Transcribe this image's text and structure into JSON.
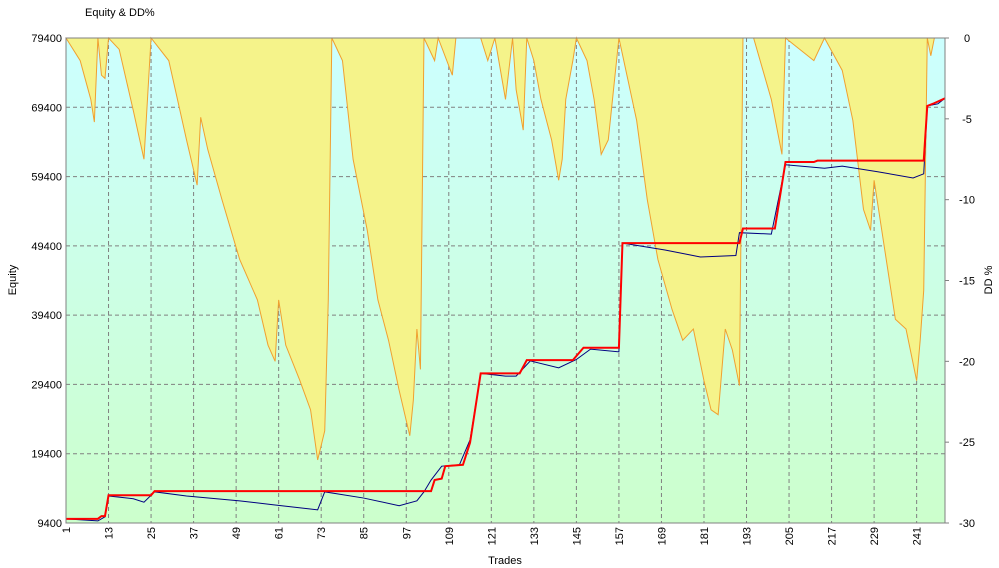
{
  "chart_data": {
    "type": "line",
    "title": "Equity & DD%",
    "x_label": "Trades",
    "y_label": "Equity",
    "y2_label": "DD %",
    "xlim": [
      1,
      249
    ],
    "xticks": [
      1,
      13,
      25,
      37,
      49,
      61,
      73,
      85,
      97,
      109,
      121,
      133,
      145,
      157,
      169,
      181,
      193,
      205,
      217,
      229,
      241
    ],
    "ylim": [
      9400,
      79400
    ],
    "yticks": [
      9400,
      19400,
      29400,
      39400,
      49400,
      59400,
      69400,
      79400
    ],
    "y2lim": [
      -30,
      0
    ],
    "y2ticks": [
      0,
      -5,
      -10,
      -15,
      -20,
      -25,
      -30
    ],
    "grid": true,
    "series": [
      {
        "type": "area",
        "axis": "y2",
        "color": "#f5f38a",
        "edge_color": "#f0a030",
        "x": [
          1,
          5,
          8,
          9,
          10,
          11,
          12,
          13,
          16,
          20,
          23,
          25,
          30,
          35,
          38,
          39,
          41,
          45,
          50,
          55,
          58,
          60,
          61,
          63,
          67,
          70,
          72,
          74,
          75,
          76,
          79,
          82,
          86,
          89,
          92,
          95,
          98,
          99,
          100,
          101,
          102,
          105,
          106,
          110,
          111,
          118,
          120,
          122,
          125,
          127,
          128,
          130,
          131,
          133,
          135,
          138,
          140,
          141,
          142,
          144,
          145,
          148,
          150,
          152,
          154,
          157,
          162,
          165,
          168,
          172,
          175,
          178,
          181,
          183,
          185,
          187,
          189,
          191,
          192,
          195,
          200,
          203,
          204,
          212,
          215,
          220,
          223,
          226,
          228,
          229,
          232,
          235,
          238,
          241,
          242,
          243,
          244,
          245,
          246,
          249
        ],
        "values": [
          0,
          -1.4,
          -3.8,
          -5.2,
          0,
          -2.3,
          -2.5,
          0,
          -0.7,
          -4.5,
          -7.5,
          0,
          -1.4,
          -6.3,
          -9.1,
          -4.9,
          -6.9,
          -10,
          -13.7,
          -16.2,
          -19,
          -20,
          -16.2,
          -19,
          -21.2,
          -23,
          -26.1,
          -24.3,
          -16.2,
          0,
          -1.4,
          -7.5,
          -11.9,
          -16.2,
          -18.7,
          -21.8,
          -24.6,
          -22.4,
          -18,
          -20.5,
          0,
          -1.4,
          0,
          -2.3,
          0,
          0,
          -1.4,
          0,
          -3.8,
          0,
          -3.2,
          -5.7,
          0,
          -1.4,
          -3.8,
          -6.3,
          -8.8,
          -7.5,
          -3.8,
          -1.4,
          0,
          -1.4,
          -3.8,
          -7.2,
          -6.3,
          0,
          -5.1,
          -10,
          -13.7,
          -16.8,
          -18.7,
          -18,
          -21.2,
          -23,
          -23.3,
          -18,
          -19.3,
          -21.5,
          0,
          0,
          -3.8,
          -7.2,
          0,
          -1.4,
          0,
          -2,
          -5.1,
          -10.6,
          -11.9,
          -8.8,
          -13.1,
          -17.4,
          -18,
          -21.2,
          -18.7,
          -15.6,
          0,
          -1.1,
          0,
          0
        ]
      },
      {
        "type": "line",
        "color": "#000080",
        "x": [
          1,
          10,
          12,
          13,
          20,
          23,
          26,
          35,
          50,
          60,
          72,
          74,
          85,
          95,
          100,
          102,
          104,
          107,
          112,
          115,
          118,
          125,
          128,
          132,
          140,
          145,
          149,
          157,
          158,
          170,
          180,
          190,
          191,
          200,
          204,
          215,
          220,
          230,
          240,
          243,
          244,
          247,
          249
        ],
        "values": [
          10000,
          9700,
          10300,
          13300,
          12900,
          12400,
          13900,
          13300,
          12600,
          12000,
          11300,
          13900,
          13000,
          11900,
          12600,
          13900,
          15600,
          17600,
          17800,
          21400,
          31000,
          30600,
          30600,
          32800,
          31800,
          33000,
          34500,
          34100,
          49800,
          48800,
          47800,
          48000,
          51300,
          51100,
          61100,
          60600,
          60900,
          60100,
          59200,
          59800,
          69600,
          69900,
          70700
        ]
      },
      {
        "type": "line",
        "color": "#ff0000",
        "x": [
          1,
          10,
          11,
          12,
          13,
          25,
          26,
          104,
          105,
          107,
          108,
          113,
          115,
          118,
          129,
          131,
          144,
          147,
          157,
          158,
          191,
          192,
          201,
          204,
          212,
          213,
          243,
          244,
          246,
          249
        ],
        "values": [
          10000,
          10000,
          10400,
          10400,
          13400,
          13400,
          14000,
          14000,
          15600,
          15800,
          17600,
          17800,
          21000,
          31000,
          31000,
          32900,
          32900,
          34700,
          34700,
          49800,
          49800,
          51900,
          51900,
          61500,
          61500,
          61700,
          61700,
          69600,
          70000,
          70700
        ]
      }
    ]
  }
}
